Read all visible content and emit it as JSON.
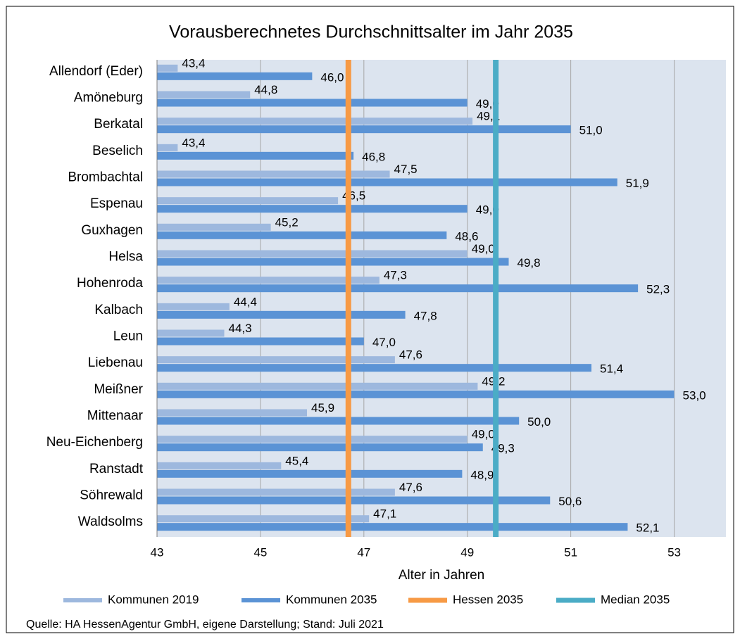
{
  "chart_data": {
    "type": "bar",
    "orientation": "horizontal",
    "title": "Vorausberechnetes Durchschnittsalter im Jahr 2035",
    "x_label": "Alter in Jahren",
    "source": "Quelle: HA HessenAgentur GmbH, eigene Darstellung; Stand: Juli 2021",
    "categories": [
      "Allendorf (Eder)",
      "Amöneburg",
      "Berkatal",
      "Beselich",
      "Brombachtal",
      "Espenau",
      "Guxhagen",
      "Helsa",
      "Hohenroda",
      "Kalbach",
      "Leun",
      "Liebenau",
      "Meißner",
      "Mittenaar",
      "Neu-Eichenberg",
      "Ranstadt",
      "Söhrewald",
      "Waldsolms"
    ],
    "series": [
      {
        "name": "Kommunen 2019",
        "color": "#9db8de",
        "values": [
          43.4,
          44.8,
          49.1,
          43.4,
          47.5,
          46.5,
          45.2,
          49.0,
          47.3,
          44.4,
          44.3,
          47.6,
          49.2,
          45.9,
          49.0,
          45.4,
          47.6,
          47.1
        ],
        "value_labels": [
          "43,4",
          "44,8",
          "49,1",
          "43,4",
          "47,5",
          "46,5",
          "45,2",
          "49,0",
          "47,3",
          "44,4",
          "44,3",
          "47,6",
          "49,2",
          "45,9",
          "49,0",
          "45,4",
          "47,6",
          "47,1"
        ]
      },
      {
        "name": "Kommunen 2035",
        "color": "#5b93d5",
        "values": [
          46.0,
          49.0,
          51.0,
          46.8,
          51.9,
          49.0,
          48.6,
          49.8,
          52.3,
          47.8,
          47.0,
          51.4,
          53.0,
          50.0,
          49.3,
          48.9,
          50.6,
          52.1
        ],
        "value_labels": [
          "46,0",
          "49,0",
          "51,0",
          "46,8",
          "51,9",
          "49,0",
          "48,6",
          "49,8",
          "52,3",
          "47,8",
          "47,0",
          "51,4",
          "53,0",
          "50,0",
          "49,3",
          "48,9",
          "50,6",
          "52,1"
        ]
      }
    ],
    "reference_lines": [
      {
        "name": "Hessen 2035",
        "color": "#f79a45",
        "value": 46.7
      },
      {
        "name": "Median 2035",
        "color": "#4bacc6",
        "value": 49.55
      }
    ],
    "xlim": [
      43,
      54
    ],
    "xticks": [
      43,
      45,
      47,
      49,
      51,
      53
    ],
    "grid": true,
    "legend": "bottom"
  }
}
